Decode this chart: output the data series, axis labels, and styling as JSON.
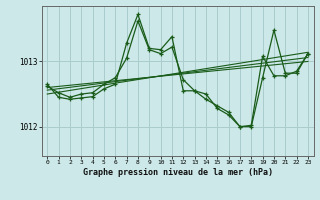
{
  "title": "Graphe pression niveau de la mer (hPa)",
  "bg_color": "#cce8e8",
  "grid_color": "#aacccc",
  "line_color": "#1a5c1a",
  "xmin": -0.5,
  "xmax": 23.5,
  "ymin": 1011.55,
  "ymax": 1013.85,
  "yticks": [
    1012,
    1013
  ],
  "ytick_labels": [
    "1012",
    "1013"
  ],
  "xticks": [
    0,
    1,
    2,
    3,
    4,
    5,
    6,
    7,
    8,
    9,
    10,
    11,
    12,
    13,
    14,
    15,
    16,
    17,
    18,
    19,
    20,
    21,
    22,
    23
  ],
  "series_x": [
    0,
    1,
    2,
    3,
    4,
    5,
    6,
    7,
    8,
    9,
    10,
    11,
    12,
    13,
    14,
    15,
    16,
    17,
    18,
    19,
    20,
    21,
    22,
    23
  ],
  "pressure1": [
    1012.62,
    1012.52,
    1012.45,
    1012.5,
    1012.52,
    1012.65,
    1012.75,
    1013.05,
    1013.62,
    1013.18,
    1013.12,
    1013.22,
    1012.72,
    1012.55,
    1012.42,
    1012.32,
    1012.22,
    1012.0,
    1012.0,
    1012.75,
    1013.48,
    1012.82,
    1012.82,
    1013.12
  ],
  "pressure2": [
    1012.65,
    1012.45,
    1012.42,
    1012.44,
    1012.46,
    1012.58,
    1012.65,
    1013.28,
    1013.72,
    1013.2,
    1013.18,
    1013.38,
    1012.55,
    1012.55,
    1012.5,
    1012.28,
    1012.18,
    1012.0,
    1012.02,
    1013.08,
    1012.78,
    1012.78,
    1012.85,
    1013.12
  ],
  "trend1_x": [
    0,
    23
  ],
  "trend1_y": [
    1012.6,
    1013.0
  ],
  "trend2_x": [
    0,
    23
  ],
  "trend2_y": [
    1012.56,
    1013.06
  ],
  "trend3_x": [
    0,
    23
  ],
  "trend3_y": [
    1012.5,
    1013.14
  ]
}
